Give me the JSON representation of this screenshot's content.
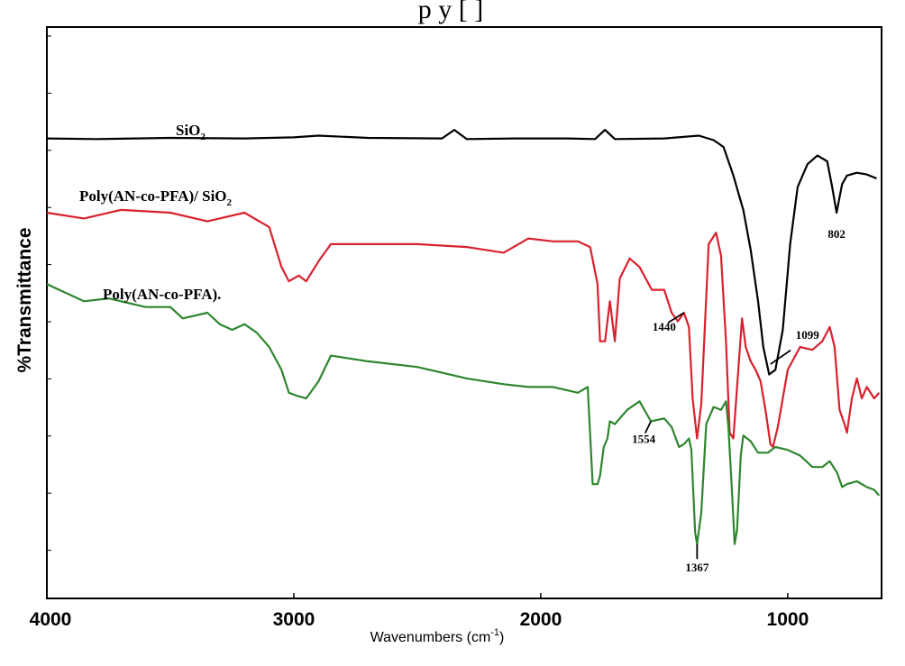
{
  "header_fragment": "p         y [  ]",
  "chart_data": {
    "type": "line",
    "title": "",
    "xlabel": "Wavenumbers (cm",
    "xlabel_sup": "-1",
    "xlabel_close": ")",
    "ylabel": "%Transmittance",
    "xlim": [
      4000,
      620
    ],
    "x_reversed": true,
    "ylim": [
      0,
      100
    ],
    "xticks": [
      "4000",
      "3000",
      "2000",
      "1000"
    ],
    "xtick_values": [
      4000,
      3000,
      2000,
      1000
    ],
    "grid": false,
    "series": [
      {
        "name": "SiO2",
        "label_main": "SiO",
        "label_sub": "2",
        "color": "#000000",
        "x": [
          4000,
          3800,
          3500,
          3200,
          3000,
          2900,
          2700,
          2400,
          2350,
          2300,
          2100,
          1900,
          1780,
          1740,
          1700,
          1500,
          1360,
          1300,
          1260,
          1220,
          1180,
          1150,
          1120,
          1099,
          1075,
          1050,
          1020,
          990,
          960,
          920,
          880,
          840,
          820,
          802,
          780,
          760,
          720,
          680,
          640
        ],
        "y": [
          80.5,
          80.4,
          80.6,
          80.5,
          80.7,
          81.0,
          80.6,
          80.5,
          82.0,
          80.4,
          80.5,
          80.5,
          80.4,
          82.0,
          80.4,
          80.5,
          81.0,
          80.2,
          79.0,
          74.0,
          68.0,
          61.0,
          52.0,
          44.0,
          39.2,
          40.0,
          47.0,
          62.0,
          72.0,
          76.0,
          77.5,
          76.5,
          72.0,
          67.5,
          72.5,
          74.0,
          74.5,
          74.2,
          73.5
        ]
      },
      {
        "name": "Poly(AN-co-PFA)/ SiO2",
        "label_main": "Poly(AN-co-PFA)/ SiO",
        "label_sub": "2",
        "color": "#d8212e",
        "x": [
          4000,
          3850,
          3700,
          3500,
          3350,
          3200,
          3100,
          3050,
          3020,
          2980,
          2950,
          2900,
          2850,
          2700,
          2500,
          2300,
          2150,
          2050,
          1950,
          1850,
          1800,
          1770,
          1760,
          1740,
          1720,
          1700,
          1680,
          1640,
          1600,
          1550,
          1500,
          1470,
          1445,
          1420,
          1400,
          1385,
          1367,
          1350,
          1320,
          1290,
          1270,
          1250,
          1235,
          1220,
          1205,
          1185,
          1170,
          1150,
          1130,
          1110,
          1090,
          1070,
          1060,
          1040,
          1000,
          950,
          900,
          860,
          830,
          810,
          790,
          770,
          760,
          740,
          720,
          700,
          680,
          650,
          630
        ],
        "y": [
          67.5,
          66.5,
          68.0,
          67.5,
          66.0,
          67.5,
          65.0,
          58.0,
          55.5,
          56.5,
          55.5,
          59.0,
          62.0,
          62.0,
          62.0,
          61.5,
          60.5,
          63.0,
          62.5,
          62.5,
          61.5,
          55.0,
          45.0,
          45.0,
          52.0,
          45.0,
          56.0,
          59.5,
          58.0,
          54.0,
          54.0,
          50.0,
          48.5,
          50.0,
          47.5,
          35.0,
          28.0,
          34.0,
          62.0,
          64.0,
          60.0,
          45.0,
          29.0,
          28.0,
          37.0,
          49.0,
          44.0,
          41.5,
          40.0,
          38.0,
          33.0,
          27.0,
          26.5,
          30.0,
          40.0,
          44.0,
          43.5,
          45.0,
          47.5,
          44.0,
          33.0,
          30.5,
          29.0,
          35.0,
          38.5,
          35.0,
          37.0,
          35.0,
          36.0
        ]
      },
      {
        "name": "Poly(AN-co-PFA).",
        "label_main": "Poly(AN-co-PFA).",
        "label_sub": "",
        "color": "#2e862e",
        "x": [
          4000,
          3850,
          3750,
          3600,
          3500,
          3450,
          3350,
          3300,
          3250,
          3200,
          3150,
          3100,
          3050,
          3020,
          2990,
          2950,
          2900,
          2850,
          2700,
          2500,
          2300,
          2150,
          2050,
          1950,
          1850,
          1810,
          1790,
          1770,
          1760,
          1745,
          1730,
          1720,
          1700,
          1650,
          1600,
          1554,
          1500,
          1470,
          1440,
          1420,
          1400,
          1390,
          1375,
          1367,
          1350,
          1330,
          1300,
          1270,
          1250,
          1240,
          1225,
          1215,
          1205,
          1190,
          1180,
          1150,
          1120,
          1080,
          1050,
          1000,
          950,
          900,
          860,
          830,
          800,
          780,
          760,
          720,
          680,
          650,
          630
        ],
        "y": [
          55.0,
          52.0,
          52.5,
          51.0,
          51.0,
          49.0,
          50.0,
          48.0,
          47.0,
          48.0,
          46.5,
          44.0,
          40.0,
          36.0,
          35.5,
          35.0,
          38.0,
          42.5,
          41.5,
          40.5,
          38.5,
          37.5,
          37.0,
          37.0,
          36.0,
          37.0,
          20.0,
          20.0,
          21.5,
          26.5,
          28.0,
          31.0,
          30.5,
          33.0,
          34.5,
          31.0,
          31.5,
          30.0,
          26.5,
          27.0,
          28.0,
          26.0,
          11.5,
          9.5,
          15.0,
          30.5,
          33.5,
          33.0,
          34.5,
          30.0,
          18.0,
          9.5,
          12.0,
          25.0,
          28.5,
          27.5,
          25.5,
          25.5,
          26.5,
          26.0,
          25.0,
          23.0,
          23.0,
          24.0,
          22.0,
          19.5,
          20.0,
          20.5,
          19.5,
          19.0,
          18.0
        ]
      }
    ],
    "annotations": [
      {
        "text": "802",
        "x": 802,
        "y": 67.5,
        "series": 0
      },
      {
        "text": "1099",
        "x": 1070,
        "y": 41.0,
        "series": 0
      },
      {
        "text": "1440",
        "x": 1420,
        "y": 50.0,
        "series": 1
      },
      {
        "text": "1554",
        "x": 1554,
        "y": 31.0,
        "series": 2
      },
      {
        "text": "1367",
        "x": 1367,
        "y": 9.5,
        "series": 2
      }
    ]
  }
}
